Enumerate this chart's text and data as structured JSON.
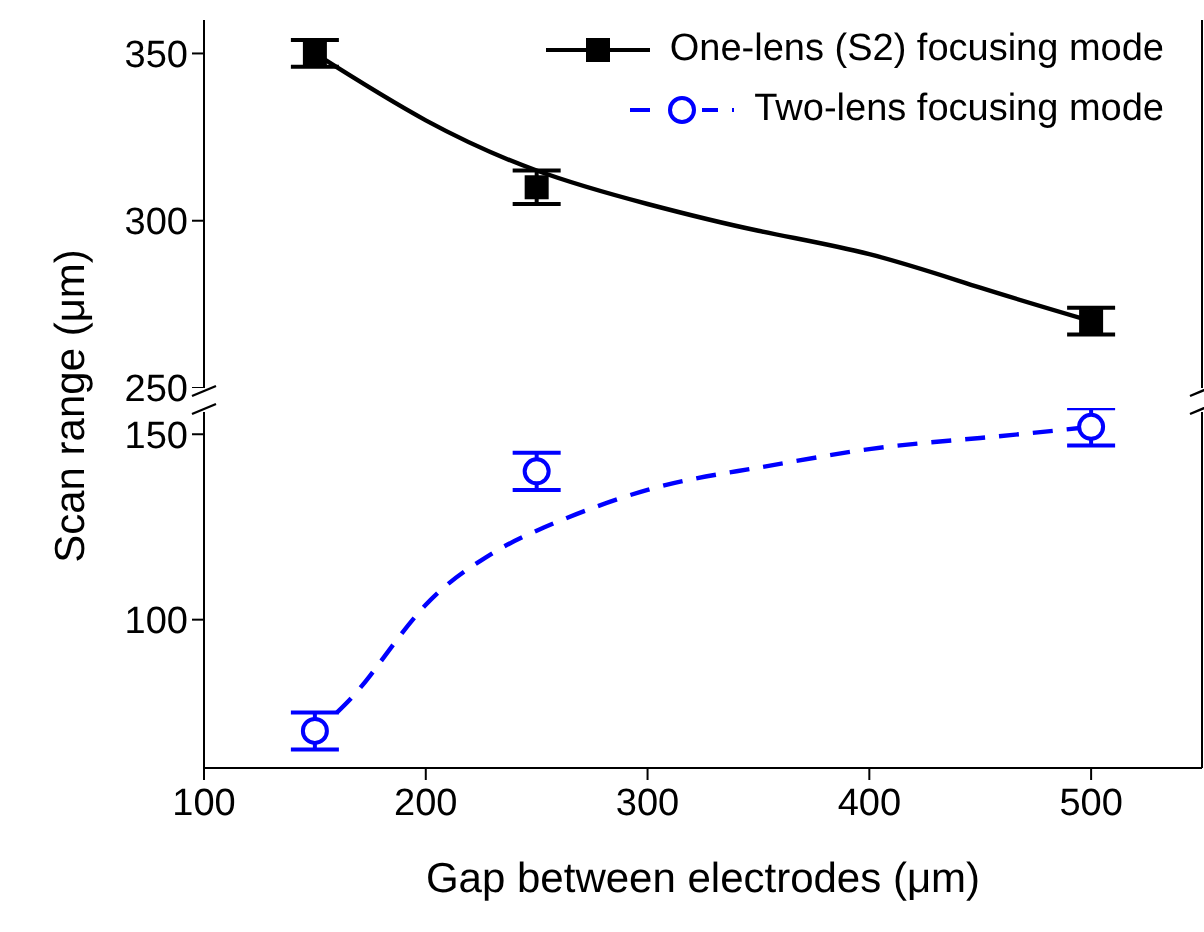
{
  "chart_data": [
    {
      "type": "scatter",
      "ylabel": "Scan range (μm)",
      "xlim": [
        100,
        550
      ],
      "xticks": [
        100,
        200,
        300,
        400,
        500
      ],
      "ylim": [
        250,
        360
      ],
      "yticks": [
        250,
        300,
        350
      ],
      "tick_labels": "y",
      "legend": "top right",
      "grid": false,
      "series": [
        {
          "name": "One-lens (S2) focusing mode",
          "color": "#000000",
          "marker": "square",
          "x": [
            150,
            250,
            500
          ],
          "values": [
            350,
            310,
            270
          ],
          "errors": [
            4,
            5,
            4
          ]
        },
        {
          "type": "line",
          "color": "#000000",
          "line_style": "solid",
          "marker": "none",
          "x": [
            150,
            200,
            250,
            300,
            350,
            400,
            450,
            500
          ],
          "values": [
            350,
            330,
            315,
            305,
            297,
            290,
            280,
            270
          ]
        }
      ]
    },
    {
      "type": "scatter",
      "xlabel": "Gap between electrodes (μm)",
      "xlim": [
        100,
        550
      ],
      "xticks": [
        100,
        200,
        300,
        400,
        500
      ],
      "ylim": [
        60,
        156
      ],
      "yticks": [
        100,
        150
      ],
      "legend": "top right",
      "grid": false,
      "series": [
        {
          "name": "Two-lens focusing mode",
          "color": "#0000ff",
          "marker": "circle",
          "x": [
            150,
            250,
            500
          ],
          "values": [
            70,
            140,
            152
          ],
          "errors": [
            5,
            5,
            5
          ]
        },
        {
          "type": "line",
          "color": "#0000ff",
          "line_style": "dashed",
          "marker": "none",
          "x": [
            160,
            175,
            200,
            225,
            250,
            300,
            350,
            400,
            450,
            500
          ],
          "values": [
            75,
            85,
            104,
            116,
            124,
            135,
            141,
            146,
            149,
            152
          ]
        }
      ]
    }
  ]
}
